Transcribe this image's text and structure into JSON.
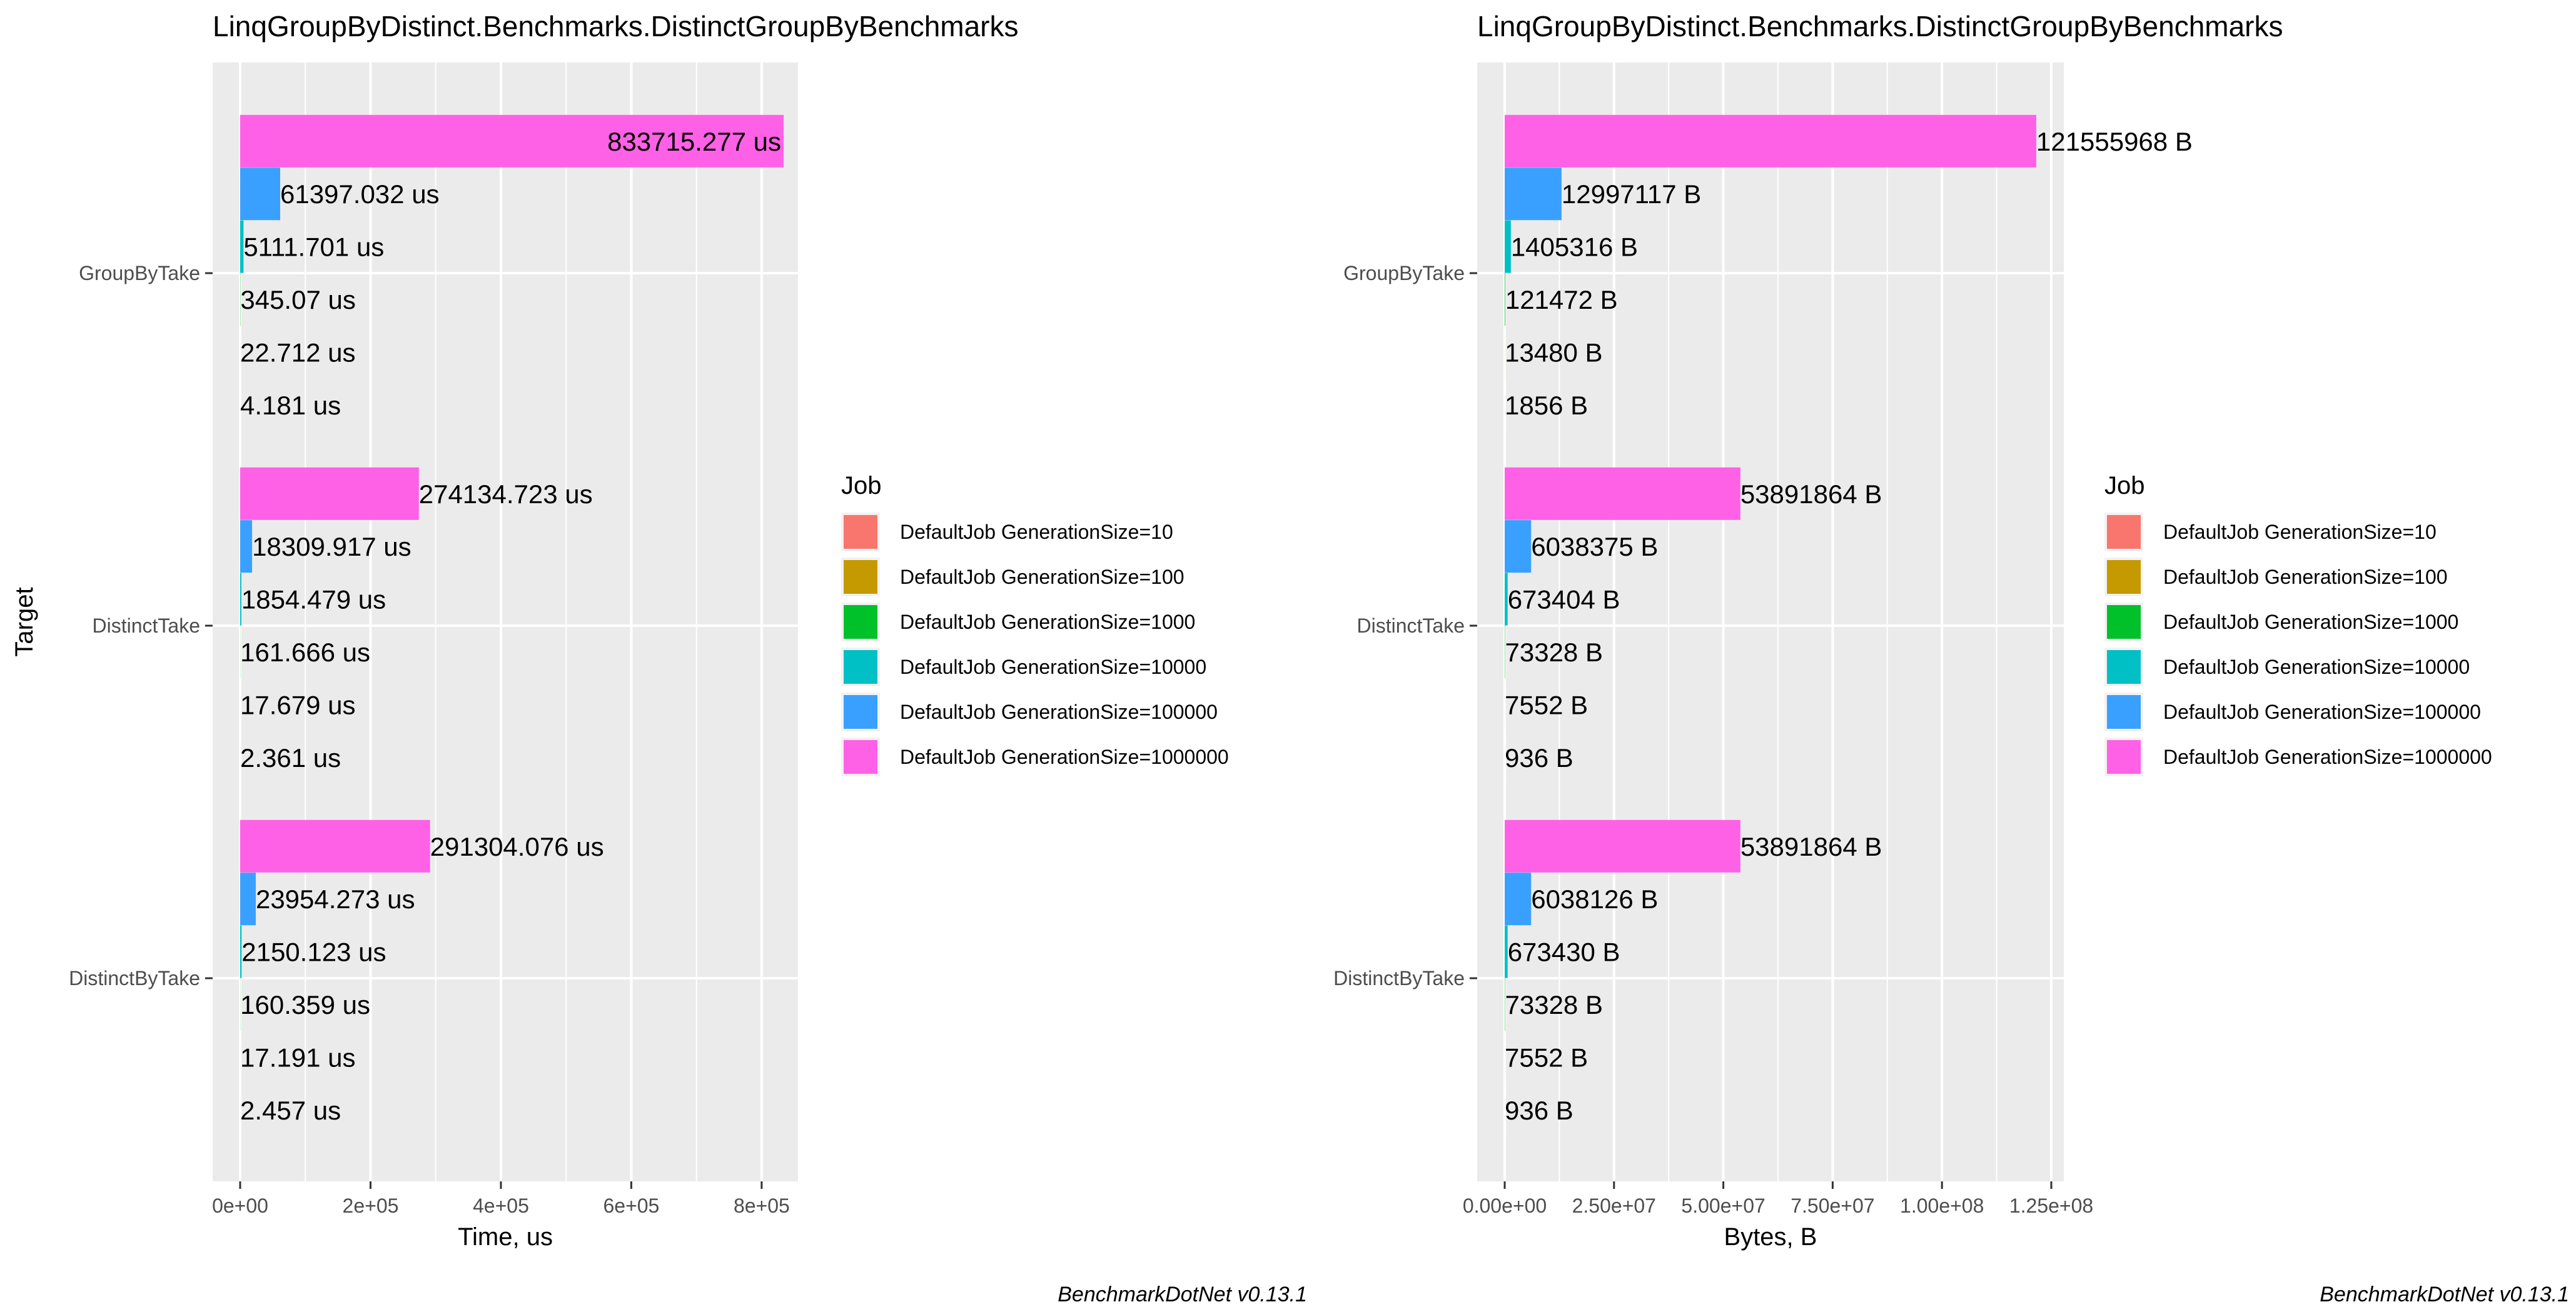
{
  "chart_data": [
    {
      "type": "bar",
      "orientation": "horizontal",
      "title": "LinqGroupByDistinct.Benchmarks.DistinctGroupByBenchmarks",
      "xlabel": "Time, us",
      "ylabel": "Target",
      "categories": [
        "GroupByTake",
        "DistinctTake",
        "DistinctByTake"
      ],
      "xlim": [
        0,
        850000
      ],
      "x_ticks": [
        0,
        200000,
        400000,
        600000,
        800000
      ],
      "x_tick_labels": [
        "0e+00",
        "2e+05",
        "4e+05",
        "6e+05",
        "8e+05"
      ],
      "legend_title": "Job",
      "legend_position": "right",
      "grid": true,
      "caption": "BenchmarkDotNet v0.13.1",
      "series": [
        {
          "name": "DefaultJob GenerationSize=10",
          "color": "#F8766D",
          "values": [
            4.181,
            2.361,
            2.457
          ],
          "labels": [
            "4.181 us",
            "2.361 us",
            "2.457 us"
          ]
        },
        {
          "name": "DefaultJob GenerationSize=100",
          "color": "#C49A00",
          "values": [
            22.712,
            17.679,
            17.191
          ],
          "labels": [
            "22.712 us",
            "17.679 us",
            "17.191 us"
          ]
        },
        {
          "name": "DefaultJob GenerationSize=1000",
          "color": "#00C12A",
          "values": [
            345.07,
            161.666,
            160.359
          ],
          "labels": [
            "345.07 us",
            "161.666 us",
            "160.359 us"
          ]
        },
        {
          "name": "DefaultJob GenerationSize=10000",
          "color": "#00C0C5",
          "values": [
            5111.701,
            1854.479,
            2150.123
          ],
          "labels": [
            "5111.701 us",
            "1854.479 us",
            "2150.123 us"
          ]
        },
        {
          "name": "DefaultJob GenerationSize=100000",
          "color": "#3AA0FF",
          "values": [
            61397.032,
            18309.917,
            23954.273
          ],
          "labels": [
            "61397.032 us",
            "18309.917 us",
            "23954.273 us"
          ]
        },
        {
          "name": "DefaultJob GenerationSize=1000000",
          "color": "#FF61E6",
          "values": [
            833715.277,
            274134.723,
            291304.076
          ],
          "labels": [
            "833715.277 us",
            "274134.723 us",
            "291304.076 us"
          ]
        }
      ]
    },
    {
      "type": "bar",
      "orientation": "horizontal",
      "title": "LinqGroupByDistinct.Benchmarks.DistinctGroupByBenchmarks",
      "xlabel": "Bytes, B",
      "ylabel": "",
      "categories": [
        "GroupByTake",
        "DistinctTake",
        "DistinctByTake"
      ],
      "xlim": [
        0,
        127000000
      ],
      "x_ticks": [
        0,
        25000000,
        50000000,
        75000000,
        100000000,
        125000000
      ],
      "x_tick_labels": [
        "0.00e+00",
        "2.50e+07",
        "5.00e+07",
        "7.50e+07",
        "1.00e+08",
        "1.25e+08"
      ],
      "legend_title": "Job",
      "legend_position": "right",
      "grid": true,
      "caption": "BenchmarkDotNet v0.13.1",
      "series": [
        {
          "name": "DefaultJob GenerationSize=10",
          "color": "#F8766D",
          "values": [
            1856,
            936,
            936
          ],
          "labels": [
            "1856 B",
            "936 B",
            "936 B"
          ]
        },
        {
          "name": "DefaultJob GenerationSize=100",
          "color": "#C49A00",
          "values": [
            13480,
            7552,
            7552
          ],
          "labels": [
            "13480 B",
            "7552 B",
            "7552 B"
          ]
        },
        {
          "name": "DefaultJob GenerationSize=1000",
          "color": "#00C12A",
          "values": [
            121472,
            73328,
            73328
          ],
          "labels": [
            "121472 B",
            "73328 B",
            "73328 B"
          ]
        },
        {
          "name": "DefaultJob GenerationSize=10000",
          "color": "#00C0C5",
          "values": [
            1405316,
            673404,
            673430
          ],
          "labels": [
            "1405316 B",
            "673404 B",
            "673430 B"
          ]
        },
        {
          "name": "DefaultJob GenerationSize=100000",
          "color": "#3AA0FF",
          "values": [
            12997117,
            6038375,
            6038126
          ],
          "labels": [
            "12997117 B",
            "6038375 B",
            "6038126 B"
          ]
        },
        {
          "name": "DefaultJob GenerationSize=1000000",
          "color": "#FF61E6",
          "values": [
            121555968,
            53891864,
            53891864
          ],
          "labels": [
            "121555968 B",
            "53891864 B",
            "53891864 B"
          ]
        }
      ]
    }
  ]
}
